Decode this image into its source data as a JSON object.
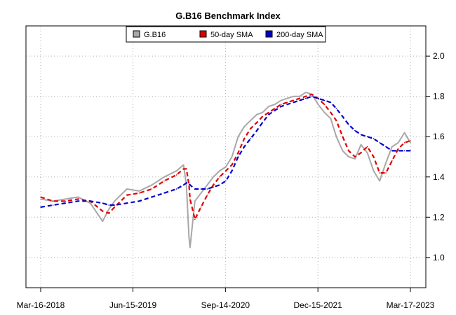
{
  "chart_data": {
    "type": "line",
    "title": "G.B16 Benchmark Index",
    "xlabel": "",
    "ylabel": "",
    "x_start": "2018-03-16",
    "x_end": "2023-03-17",
    "x_ticks": [
      "Mar-16-2018",
      "Jun-15-2019",
      "Sep-14-2020",
      "Dec-15-2021",
      "Mar-17-2023"
    ],
    "y_ticks": [
      "1.0",
      "1.2",
      "1.4",
      "1.6",
      "1.8",
      "2.0"
    ],
    "ylim": [
      0.85,
      2.15
    ],
    "grid": true,
    "legend_position": "top-center",
    "x": [
      "2018-03-16",
      "2018-05-16",
      "2018-07-16",
      "2018-09-16",
      "2018-11-16",
      "2019-01-16",
      "2019-02-16",
      "2019-03-16",
      "2019-05-16",
      "2019-07-16",
      "2019-09-16",
      "2019-11-16",
      "2020-01-16",
      "2020-02-20",
      "2020-03-05",
      "2020-03-18",
      "2020-03-23",
      "2020-04-16",
      "2020-05-16",
      "2020-06-16",
      "2020-07-16",
      "2020-08-16",
      "2020-09-16",
      "2020-10-16",
      "2020-11-16",
      "2020-12-16",
      "2021-01-16",
      "2021-02-16",
      "2021-03-16",
      "2021-04-16",
      "2021-05-16",
      "2021-06-16",
      "2021-07-16",
      "2021-08-16",
      "2021-09-16",
      "2021-10-16",
      "2021-11-16",
      "2021-12-16",
      "2022-01-16",
      "2022-02-16",
      "2022-03-16",
      "2022-04-16",
      "2022-05-16",
      "2022-06-16",
      "2022-07-16",
      "2022-08-16",
      "2022-09-16",
      "2022-10-16",
      "2022-11-16",
      "2022-12-16",
      "2023-01-16",
      "2023-02-16",
      "2023-03-17"
    ],
    "series": [
      {
        "name": "G.B16",
        "color": "#a8a8a8",
        "style": "solid",
        "values": [
          1.29,
          1.28,
          1.29,
          1.3,
          1.27,
          1.18,
          1.24,
          1.28,
          1.34,
          1.33,
          1.36,
          1.4,
          1.43,
          1.46,
          1.36,
          1.1,
          1.05,
          1.28,
          1.32,
          1.36,
          1.4,
          1.43,
          1.45,
          1.5,
          1.6,
          1.65,
          1.68,
          1.71,
          1.72,
          1.75,
          1.76,
          1.78,
          1.79,
          1.8,
          1.8,
          1.82,
          1.81,
          1.76,
          1.72,
          1.69,
          1.6,
          1.53,
          1.5,
          1.49,
          1.56,
          1.52,
          1.43,
          1.38,
          1.47,
          1.55,
          1.57,
          1.62,
          1.57
        ]
      },
      {
        "name": "50-day SMA",
        "color": "#e00000",
        "style": "dashed",
        "values": [
          1.3,
          1.28,
          1.28,
          1.29,
          1.28,
          1.23,
          1.22,
          1.25,
          1.31,
          1.32,
          1.34,
          1.38,
          1.41,
          1.44,
          1.44,
          1.36,
          1.29,
          1.19,
          1.25,
          1.31,
          1.36,
          1.4,
          1.43,
          1.46,
          1.52,
          1.59,
          1.64,
          1.67,
          1.7,
          1.72,
          1.74,
          1.76,
          1.77,
          1.78,
          1.79,
          1.8,
          1.81,
          1.79,
          1.76,
          1.72,
          1.68,
          1.6,
          1.53,
          1.5,
          1.52,
          1.55,
          1.5,
          1.42,
          1.42,
          1.48,
          1.54,
          1.57,
          1.58
        ]
      },
      {
        "name": "200-day SMA",
        "color": "#0000cc",
        "style": "dashed",
        "values": [
          1.25,
          1.26,
          1.27,
          1.28,
          1.28,
          1.27,
          1.26,
          1.26,
          1.27,
          1.28,
          1.3,
          1.32,
          1.34,
          1.36,
          1.37,
          1.37,
          1.36,
          1.34,
          1.34,
          1.34,
          1.35,
          1.36,
          1.38,
          1.43,
          1.5,
          1.55,
          1.59,
          1.63,
          1.67,
          1.71,
          1.73,
          1.75,
          1.76,
          1.77,
          1.78,
          1.79,
          1.8,
          1.79,
          1.78,
          1.77,
          1.74,
          1.7,
          1.66,
          1.63,
          1.61,
          1.6,
          1.59,
          1.57,
          1.55,
          1.53,
          1.53,
          1.53,
          1.53
        ]
      }
    ]
  }
}
